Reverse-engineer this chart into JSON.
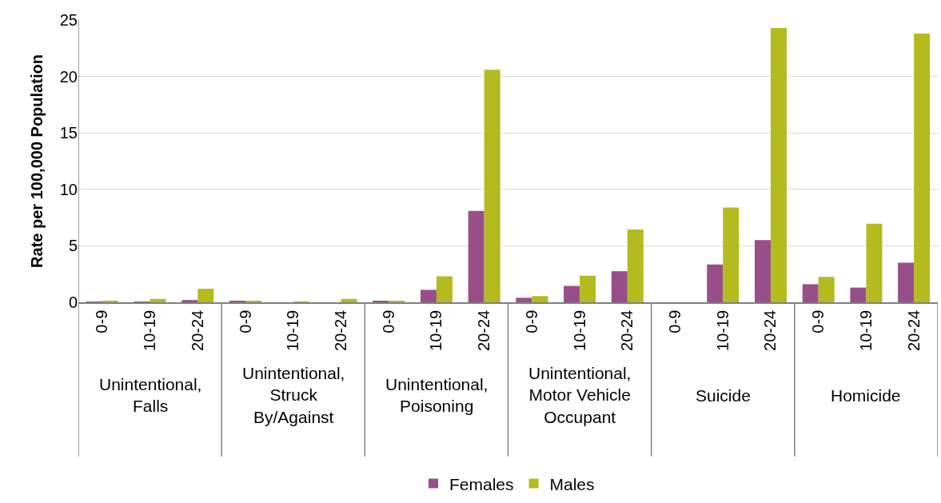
{
  "chart_data": {
    "type": "bar",
    "ylabel": "Rate per 100,000 Population",
    "categories": [
      "0-9",
      "10-19",
      "20-24",
      "0-9",
      "10-19",
      "20-24",
      "0-9",
      "10-19",
      "20-24",
      "0-9",
      "10-19",
      "20-24",
      "0-9",
      "10-19",
      "20-24",
      "0-9",
      "10-19",
      "20-24"
    ],
    "annotations": [
      "Unintentional, Falls",
      "Unintentional, Struck By/Against",
      "Unintentional, Poisoning",
      "Unintentional, Motor Vehicle Occupant",
      "Suicide",
      "Homicide"
    ],
    "series": [
      {
        "name": "Females",
        "color": "#984f89",
        "values": [
          0.05,
          0.05,
          0.2,
          0.1,
          0,
          0,
          0.1,
          1.1,
          8.1,
          0.4,
          1.45,
          2.75,
          null,
          3.35,
          5.5,
          1.6,
          1.3,
          3.5
        ]
      },
      {
        "name": "Males",
        "color": "#b3bb1e",
        "values": [
          0.15,
          0.3,
          1.2,
          0.08,
          0.05,
          0.3,
          0.1,
          2.3,
          20.6,
          0.55,
          2.35,
          6.45,
          null,
          8.4,
          24.3,
          2.25,
          6.95,
          23.8
        ]
      }
    ],
    "ylim": [
      0,
      25
    ],
    "yticks": [
      0,
      5,
      10,
      15,
      20,
      25
    ],
    "grid": "y",
    "legend": "bottom"
  }
}
